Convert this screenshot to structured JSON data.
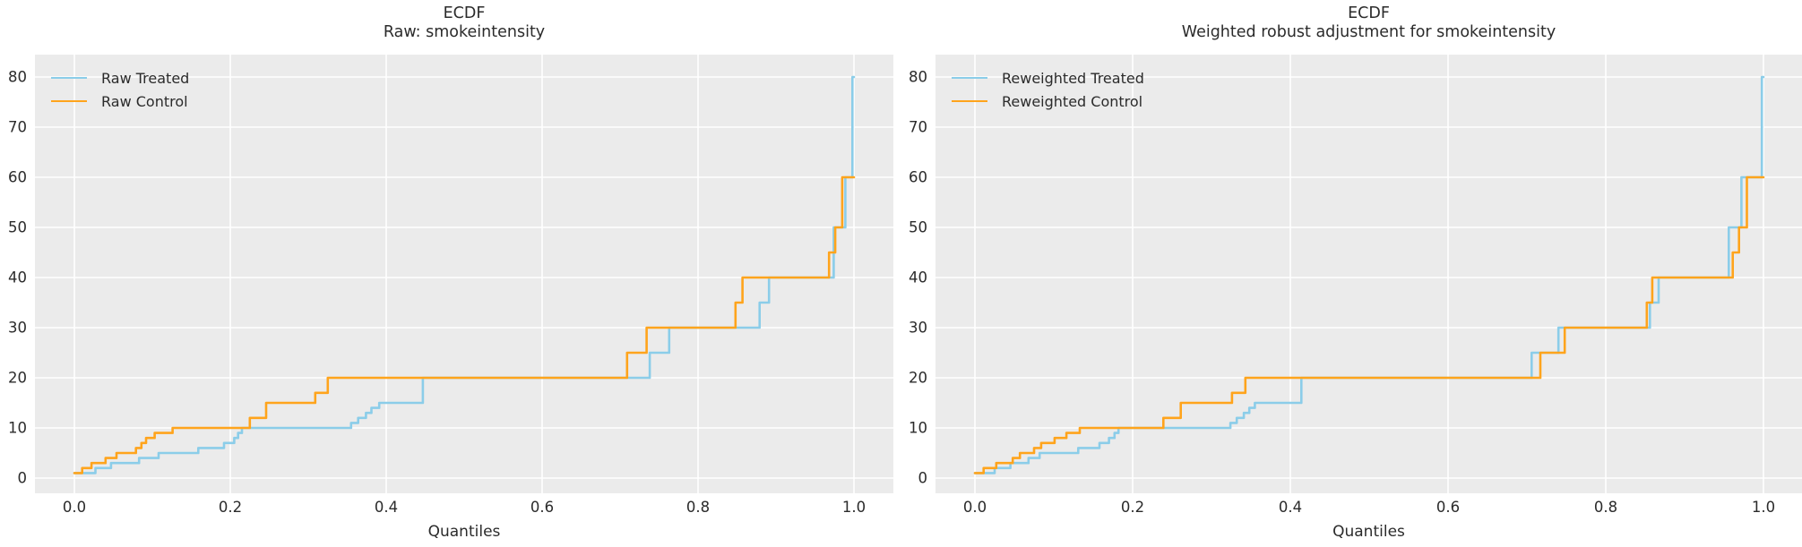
{
  "figure": {
    "background": "#ffffff",
    "plot_background": "#ebebeb",
    "grid_color": "#ffffff",
    "text_color": "#2b2b2b",
    "treated_color": "#8bcde9",
    "control_color": "#ffa41c"
  },
  "chart_data": [
    {
      "type": "line",
      "step": true,
      "title_line1": "ECDF",
      "title_line2": "Raw: smokeintensity",
      "xlabel": "Quantiles",
      "xlim": [
        -0.05,
        1.05
      ],
      "ylim": [
        -3,
        84.5
      ],
      "xticks": [
        "0.0",
        "0.2",
        "0.4",
        "0.6",
        "0.8",
        "1.0"
      ],
      "xtick_vals": [
        0.0,
        0.2,
        0.4,
        0.6,
        0.8,
        1.0
      ],
      "yticks": [
        0,
        10,
        20,
        30,
        40,
        50,
        60,
        70,
        80
      ],
      "grid": true,
      "legend_position": "upper-left",
      "series": [
        {
          "name": "Raw Treated",
          "color": "#8bcde9",
          "points": [
            [
              0,
              1
            ],
            [
              0.027,
              2
            ],
            [
              0.047,
              3
            ],
            [
              0.083,
              4
            ],
            [
              0.108,
              5
            ],
            [
              0.159,
              6
            ],
            [
              0.192,
              7
            ],
            [
              0.205,
              8
            ],
            [
              0.21,
              9
            ],
            [
              0.215,
              10
            ],
            [
              0.355,
              11
            ],
            [
              0.364,
              12
            ],
            [
              0.374,
              13
            ],
            [
              0.381,
              14
            ],
            [
              0.391,
              15
            ],
            [
              0.447,
              20
            ],
            [
              0.738,
              25
            ],
            [
              0.763,
              30
            ],
            [
              0.879,
              35
            ],
            [
              0.891,
              40
            ],
            [
              0.974,
              50
            ],
            [
              0.989,
              60
            ],
            [
              0.998,
              80
            ],
            [
              1,
              80
            ]
          ]
        },
        {
          "name": "Raw Control",
          "color": "#ffa41c",
          "points": [
            [
              0,
              1
            ],
            [
              0.01,
              2
            ],
            [
              0.022,
              3
            ],
            [
              0.04,
              4
            ],
            [
              0.054,
              5
            ],
            [
              0.079,
              6
            ],
            [
              0.086,
              7
            ],
            [
              0.092,
              8
            ],
            [
              0.103,
              9
            ],
            [
              0.126,
              10
            ],
            [
              0.225,
              12
            ],
            [
              0.246,
              15
            ],
            [
              0.309,
              17
            ],
            [
              0.325,
              20
            ],
            [
              0.709,
              25
            ],
            [
              0.734,
              30
            ],
            [
              0.848,
              35
            ],
            [
              0.857,
              40
            ],
            [
              0.968,
              45
            ],
            [
              0.976,
              50
            ],
            [
              0.985,
              60
            ],
            [
              1,
              60
            ]
          ]
        }
      ]
    },
    {
      "type": "line",
      "step": true,
      "title_line1": "ECDF",
      "title_line2": "Weighted robust adjustment for smokeintensity",
      "xlabel": "Quantiles",
      "xlim": [
        -0.05,
        1.05
      ],
      "ylim": [
        -3,
        84.5
      ],
      "xticks": [
        "0.0",
        "0.2",
        "0.4",
        "0.6",
        "0.8",
        "1.0"
      ],
      "xtick_vals": [
        0.0,
        0.2,
        0.4,
        0.6,
        0.8,
        1.0
      ],
      "yticks": [
        0,
        10,
        20,
        30,
        40,
        50,
        60,
        70,
        80
      ],
      "grid": true,
      "legend_position": "upper-left",
      "series": [
        {
          "name": "Reweighted Treated",
          "color": "#8bcde9",
          "points": [
            [
              0,
              1
            ],
            [
              0.025,
              2
            ],
            [
              0.045,
              3
            ],
            [
              0.068,
              4
            ],
            [
              0.082,
              5
            ],
            [
              0.131,
              6
            ],
            [
              0.158,
              7
            ],
            [
              0.17,
              8
            ],
            [
              0.177,
              9
            ],
            [
              0.182,
              10
            ],
            [
              0.324,
              11
            ],
            [
              0.332,
              12
            ],
            [
              0.341,
              13
            ],
            [
              0.348,
              14
            ],
            [
              0.355,
              15
            ],
            [
              0.414,
              20
            ],
            [
              0.706,
              25
            ],
            [
              0.74,
              30
            ],
            [
              0.856,
              35
            ],
            [
              0.867,
              40
            ],
            [
              0.956,
              50
            ],
            [
              0.972,
              60
            ],
            [
              0.998,
              80
            ],
            [
              1,
              80
            ]
          ]
        },
        {
          "name": "Reweighted Control",
          "color": "#ffa41c",
          "points": [
            [
              0,
              1
            ],
            [
              0.011,
              2
            ],
            [
              0.027,
              3
            ],
            [
              0.048,
              4
            ],
            [
              0.057,
              5
            ],
            [
              0.075,
              6
            ],
            [
              0.084,
              7
            ],
            [
              0.101,
              8
            ],
            [
              0.116,
              9
            ],
            [
              0.133,
              10
            ],
            [
              0.239,
              12
            ],
            [
              0.261,
              15
            ],
            [
              0.326,
              17
            ],
            [
              0.343,
              20
            ],
            [
              0.717,
              25
            ],
            [
              0.748,
              30
            ],
            [
              0.852,
              35
            ],
            [
              0.859,
              40
            ],
            [
              0.961,
              45
            ],
            [
              0.969,
              50
            ],
            [
              0.979,
              60
            ],
            [
              1,
              60
            ]
          ]
        }
      ]
    }
  ]
}
